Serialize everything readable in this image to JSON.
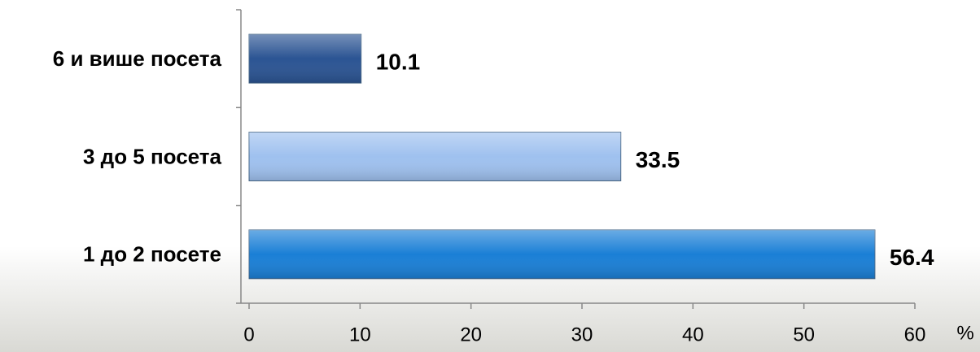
{
  "chart_data": {
    "type": "hbar",
    "categories": [
      "6 и више посета",
      "3 до 5 посета",
      "1 до 2 посете"
    ],
    "values": [
      10.1,
      33.5,
      56.4
    ],
    "colors": [
      "#2b5493",
      "#9fc1ef",
      "#1a7fd6"
    ],
    "xlim": [
      0,
      60
    ],
    "xticks": [
      0,
      10,
      20,
      30,
      40,
      50,
      60
    ],
    "x_unit": "%"
  }
}
